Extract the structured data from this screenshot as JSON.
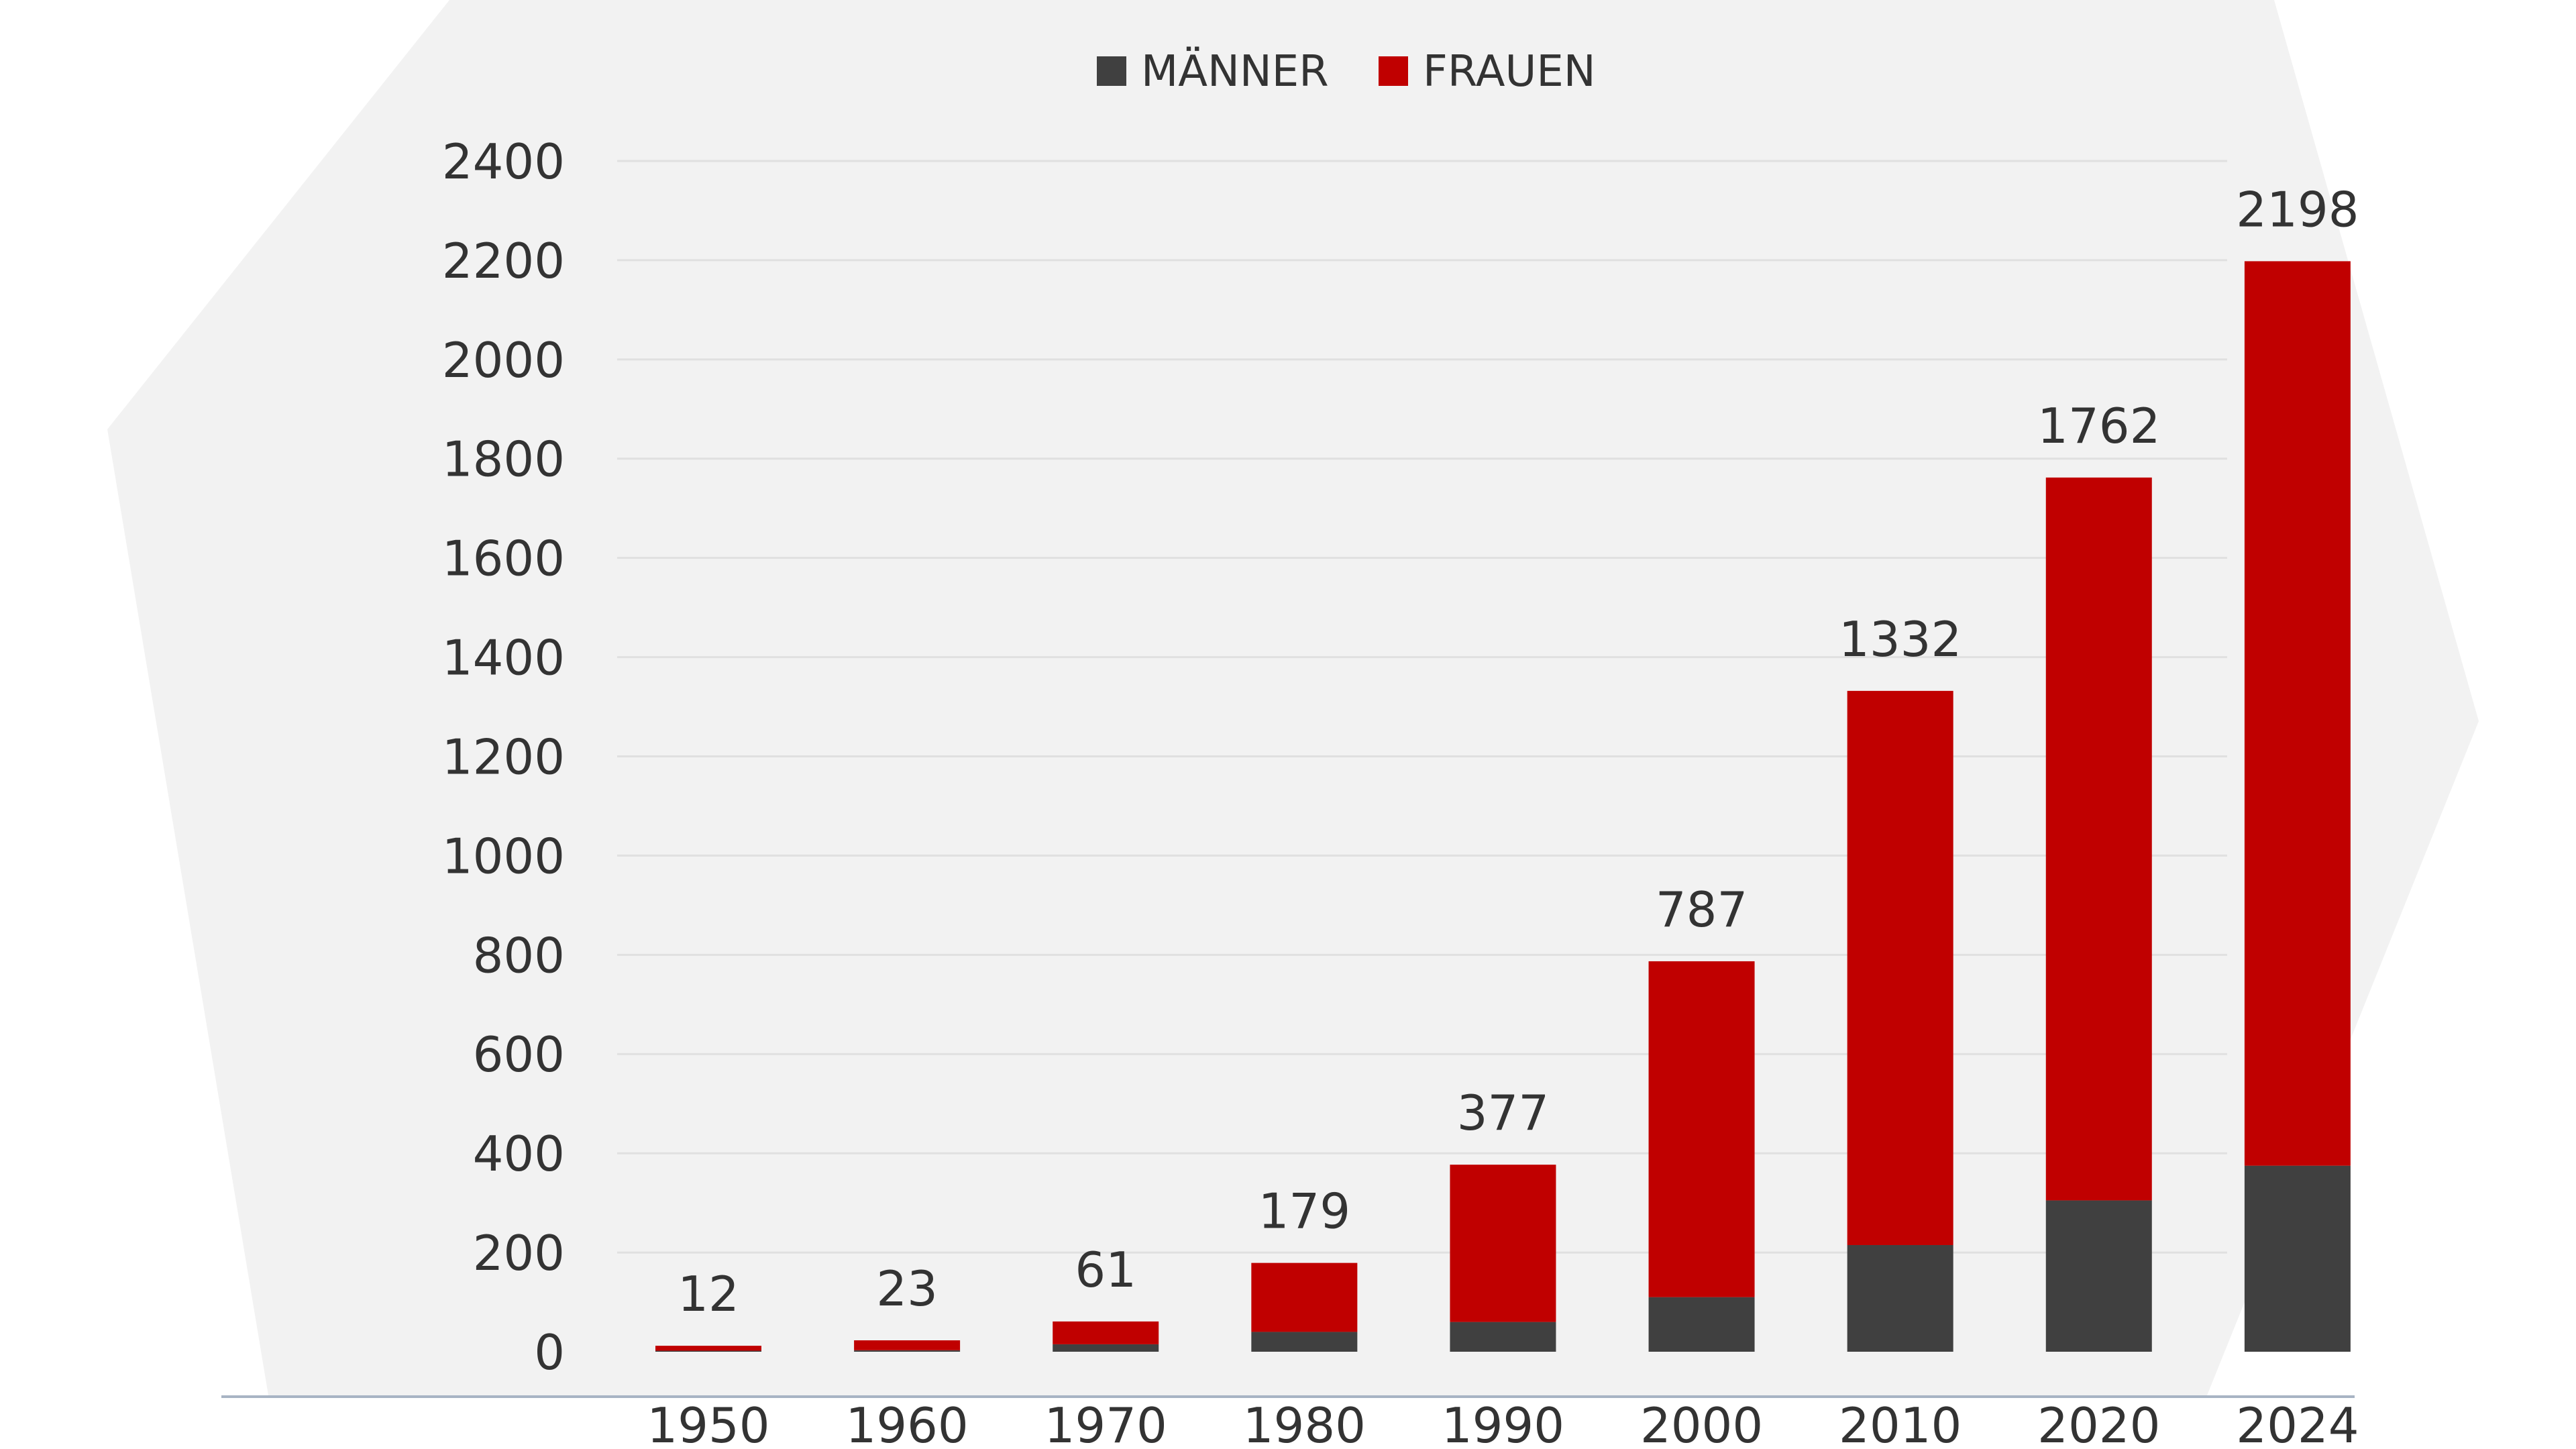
{
  "chart_data": {
    "type": "bar",
    "stacked": true,
    "title": "",
    "xlabel": "",
    "ylabel": "",
    "ylim": [
      0,
      2400
    ],
    "yticks": [
      0,
      200,
      400,
      600,
      800,
      1000,
      1200,
      1400,
      1600,
      1800,
      2000,
      2200,
      2400
    ],
    "grid": true,
    "legend_position": "top-center",
    "categories": [
      "1950",
      "1960",
      "1970",
      "1980",
      "1990",
      "2000",
      "2010",
      "2020",
      "2024"
    ],
    "series": [
      {
        "name": "MÄNNER",
        "color": "#404040",
        "values": [
          2,
          3,
          15,
          40,
          60,
          110,
          215,
          305,
          375
        ]
      },
      {
        "name": "FRAUEN",
        "color": "#c00000",
        "values": [
          10,
          20,
          46,
          139,
          317,
          677,
          1117,
          1457,
          1823
        ]
      }
    ],
    "totals": [
      12,
      23,
      61,
      179,
      377,
      787,
      1332,
      1762,
      2198
    ]
  },
  "colors": {
    "background_shape": "#f2f2f2",
    "gridline": "#e0e0e0",
    "baseline": "#a8b4c4",
    "text": "#333333"
  }
}
